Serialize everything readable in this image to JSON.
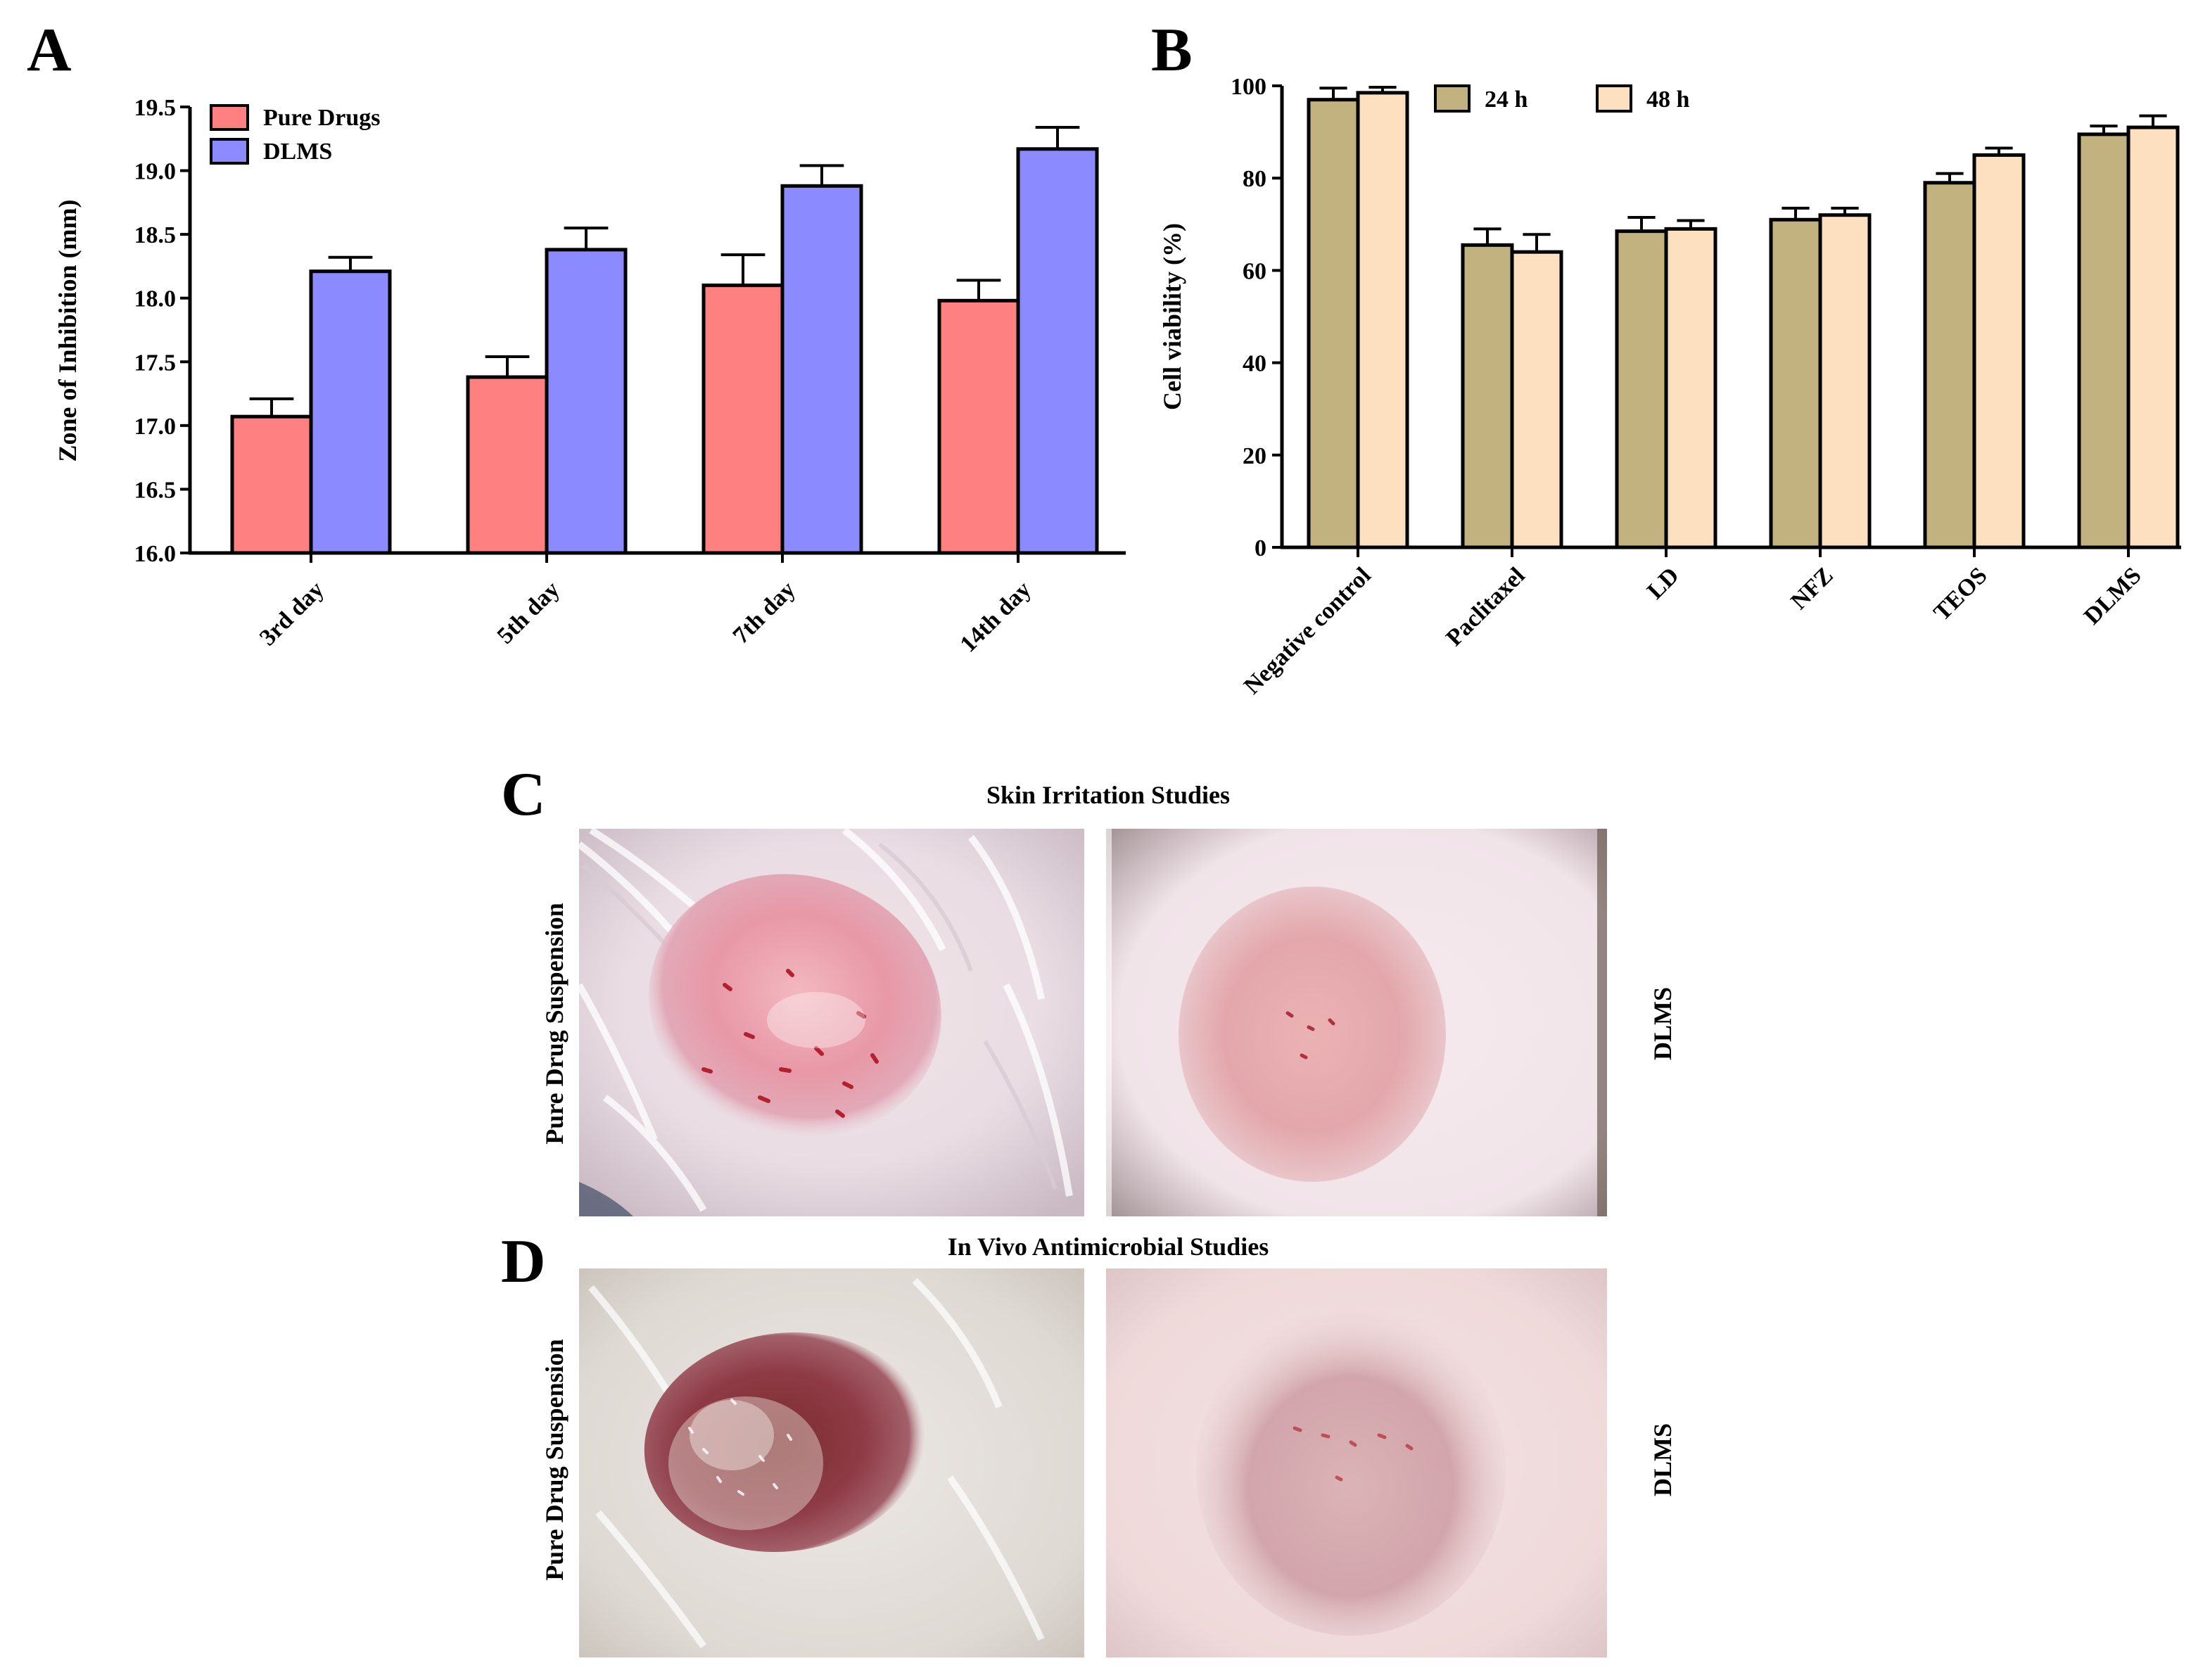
{
  "figure": {
    "panel_letters": [
      "A",
      "B",
      "C",
      "D"
    ]
  },
  "chart_data": [
    {
      "id": "A",
      "type": "bar",
      "title": "",
      "xlabel": "",
      "ylabel": "Zone of Inhibition (mm)",
      "ylim": [
        16.0,
        19.5
      ],
      "yticks": [
        "16.0",
        "16.5",
        "17.0",
        "17.5",
        "18.0",
        "18.5",
        "19.0",
        "19.5"
      ],
      "ytick_values": [
        16.0,
        16.5,
        17.0,
        17.5,
        18.0,
        18.5,
        19.0,
        19.5
      ],
      "categories": [
        "3rd day",
        "5th day",
        "7th day",
        "14th day"
      ],
      "legend_position": "top-left",
      "series": [
        {
          "name": "Pure Drugs",
          "color": "#ff8080",
          "values": [
            17.07,
            17.38,
            18.1,
            17.98
          ],
          "errors": [
            0.14,
            0.16,
            0.24,
            0.16
          ]
        },
        {
          "name": "DLMS",
          "color": "#8b8bff",
          "values": [
            18.21,
            18.38,
            18.88,
            19.17
          ],
          "errors": [
            0.11,
            0.17,
            0.16,
            0.17
          ]
        }
      ]
    },
    {
      "id": "B",
      "type": "bar",
      "title": "",
      "xlabel": "",
      "ylabel": "Cell viability (%)",
      "ylim": [
        0,
        100
      ],
      "yticks": [
        "0",
        "20",
        "40",
        "60",
        "80",
        "100"
      ],
      "ytick_values": [
        0,
        20,
        40,
        60,
        80,
        100
      ],
      "categories": [
        "Negative control",
        "Paclitaxel",
        "LD",
        "NFZ",
        "TEOS",
        "DLMS"
      ],
      "legend_position": "top",
      "series": [
        {
          "name": "24 h",
          "color": "#c2b280",
          "values": [
            97,
            65.5,
            68.5,
            71,
            79,
            89.5
          ],
          "errors": [
            2.5,
            3.5,
            3,
            2.5,
            2,
            1.8
          ]
        },
        {
          "name": "48 h",
          "color": "#fde0c0",
          "values": [
            98.5,
            64,
            69,
            72,
            85,
            91
          ],
          "errors": [
            1.2,
            3.8,
            1.8,
            1.5,
            1.5,
            2.5
          ]
        }
      ]
    }
  ],
  "photos": {
    "C": {
      "title": "Skin Irritation Studies",
      "left_label": "Pure Drug Suspension",
      "right_label": "DLMS"
    },
    "D": {
      "title": "In Vivo Antimicrobial Studies",
      "left_label": "Pure Drug Suspension",
      "right_label": "DLMS"
    }
  }
}
